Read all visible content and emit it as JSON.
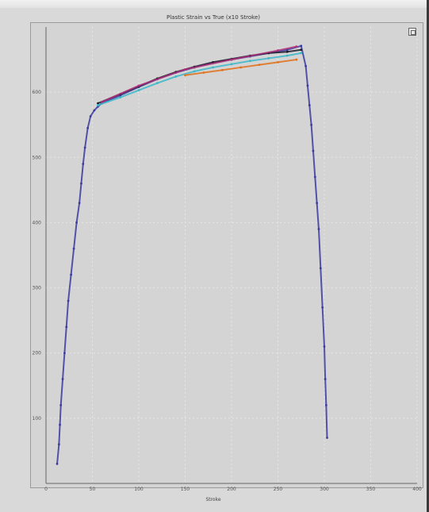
{
  "window": {
    "title": ""
  },
  "chart_data": {
    "type": "scatter",
    "title": "Plastic Strain vs True (x10 Stroke)",
    "xlabel": "Stroke",
    "ylabel": "",
    "xlim": [
      0,
      400
    ],
    "ylim": [
      0,
      700
    ],
    "x_ticks": [
      0,
      50,
      100,
      150,
      200,
      250,
      300,
      350,
      400
    ],
    "y_ticks": [
      0,
      100,
      200,
      300,
      400,
      500,
      600
    ],
    "y_tick_labels": [
      "",
      "100",
      "200",
      "300",
      "400",
      "500",
      "600"
    ],
    "grid": true,
    "series": [
      {
        "color": "#3a3aa0",
        "x": [
          12,
          14,
          15,
          16,
          18,
          20,
          22,
          24,
          27,
          30,
          33,
          36,
          38,
          40,
          42,
          45,
          48,
          52,
          56,
          60,
          80,
          100,
          120,
          140,
          160,
          180,
          200,
          220,
          240,
          260,
          275,
          280,
          282,
          284,
          286,
          288,
          290,
          292,
          294,
          296,
          298,
          300,
          301,
          302,
          303
        ],
        "y": [
          30,
          60,
          90,
          120,
          160,
          200,
          240,
          280,
          320,
          360,
          400,
          430,
          460,
          490,
          515,
          545,
          563,
          572,
          578,
          583,
          595,
          608,
          620,
          630,
          638,
          645,
          650,
          655,
          660,
          665,
          671,
          640,
          610,
          580,
          550,
          510,
          470,
          430,
          390,
          330,
          270,
          210,
          160,
          120,
          70
        ]
      },
      {
        "color": "#1a1a2a",
        "x": [
          56,
          80,
          100,
          120,
          140,
          160,
          180,
          200,
          220,
          240,
          260,
          275
        ],
        "y": [
          583,
          597,
          609,
          621,
          631,
          639,
          646,
          651,
          656,
          660,
          662,
          665
        ]
      },
      {
        "color": "#39b7c9",
        "x": [
          56,
          80,
          100,
          120,
          140,
          160,
          180,
          200,
          220,
          240,
          260,
          275
        ],
        "y": [
          580,
          592,
          603,
          614,
          624,
          632,
          638,
          643,
          648,
          652,
          656,
          660
        ]
      },
      {
        "color": "#e0701a",
        "x": [
          150,
          170,
          190,
          210,
          230,
          250,
          270
        ],
        "y": [
          626,
          630,
          634,
          638,
          642,
          646,
          650
        ]
      },
      {
        "color": "#b0307a",
        "x": [
          60,
          100,
          150,
          200,
          250,
          270
        ],
        "y": [
          585,
          610,
          635,
          650,
          664,
          670
        ]
      }
    ]
  }
}
